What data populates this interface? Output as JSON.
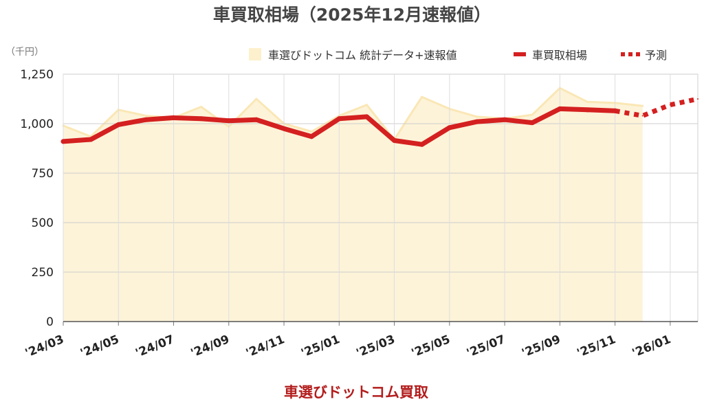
{
  "chart_data": {
    "type": "line",
    "title": "車買取相場（2025年12月速報値）",
    "unit_label": "（千円）",
    "footer": "車選びドットコム買取",
    "ylim": [
      0,
      1250
    ],
    "yticks": [
      "0",
      "250",
      "500",
      "750",
      "1,000",
      "1,250"
    ],
    "ytick_values": [
      0,
      250,
      500,
      750,
      1000,
      1250
    ],
    "x": [
      "2024-03",
      "2024-04",
      "2024-05",
      "2024-06",
      "2024-07",
      "2024-08",
      "2024-09",
      "2024-10",
      "2024-11",
      "2024-12",
      "2025-01",
      "2025-02",
      "2025-03",
      "2025-04",
      "2025-05",
      "2025-06",
      "2025-07",
      "2025-08",
      "2025-09",
      "2025-10",
      "2025-11",
      "2025-12",
      "2026-01",
      "2026-02"
    ],
    "xtick_labels": [
      "'24/03",
      "'24/05",
      "'24/07",
      "'24/09",
      "'24/11",
      "'25/01",
      "'25/03",
      "'25/05",
      "'25/07",
      "'25/09",
      "'25/11",
      "'26/01"
    ],
    "xtick_months": [
      "2024-03",
      "2024-05",
      "2024-07",
      "2024-09",
      "2024-11",
      "2025-01",
      "2025-03",
      "2025-05",
      "2025-07",
      "2025-09",
      "2025-11",
      "2026-01"
    ],
    "legend_position": "top-right",
    "grid": true,
    "series": [
      {
        "name": "車選びドットコム 統計データ+速報値",
        "kind": "area",
        "color": "#fdf3d9",
        "line_color": "#fae7b5",
        "x": [
          "2024-03",
          "2024-04",
          "2024-05",
          "2024-06",
          "2024-07",
          "2024-08",
          "2024-09",
          "2024-10",
          "2024-11",
          "2024-12",
          "2025-01",
          "2025-02",
          "2025-03",
          "2025-04",
          "2025-05",
          "2025-06",
          "2025-07",
          "2025-08",
          "2025-09",
          "2025-10",
          "2025-11",
          "2025-12"
        ],
        "values": [
          990,
          935,
          1070,
          1040,
          1030,
          1085,
          985,
          1125,
          1000,
          960,
          1040,
          1095,
          920,
          1135,
          1075,
          1035,
          1025,
          1045,
          1180,
          1110,
          1105,
          1090
        ]
      },
      {
        "name": "車買取相場",
        "kind": "line",
        "color": "#d42020",
        "x": [
          "2024-03",
          "2024-04",
          "2024-05",
          "2024-06",
          "2024-07",
          "2024-08",
          "2024-09",
          "2024-10",
          "2024-11",
          "2024-12",
          "2025-01",
          "2025-02",
          "2025-03",
          "2025-04",
          "2025-05",
          "2025-06",
          "2025-07",
          "2025-08",
          "2025-09",
          "2025-10",
          "2025-11"
        ],
        "values": [
          910,
          920,
          995,
          1020,
          1030,
          1025,
          1015,
          1020,
          975,
          935,
          1025,
          1035,
          915,
          895,
          980,
          1010,
          1020,
          1005,
          1075,
          1070,
          1065
        ]
      },
      {
        "name": "予測",
        "kind": "dotted",
        "color": "#d42020",
        "x": [
          "2025-11",
          "2025-12",
          "2026-01",
          "2026-02"
        ],
        "values": [
          1065,
          1040,
          1095,
          1125
        ]
      }
    ]
  }
}
